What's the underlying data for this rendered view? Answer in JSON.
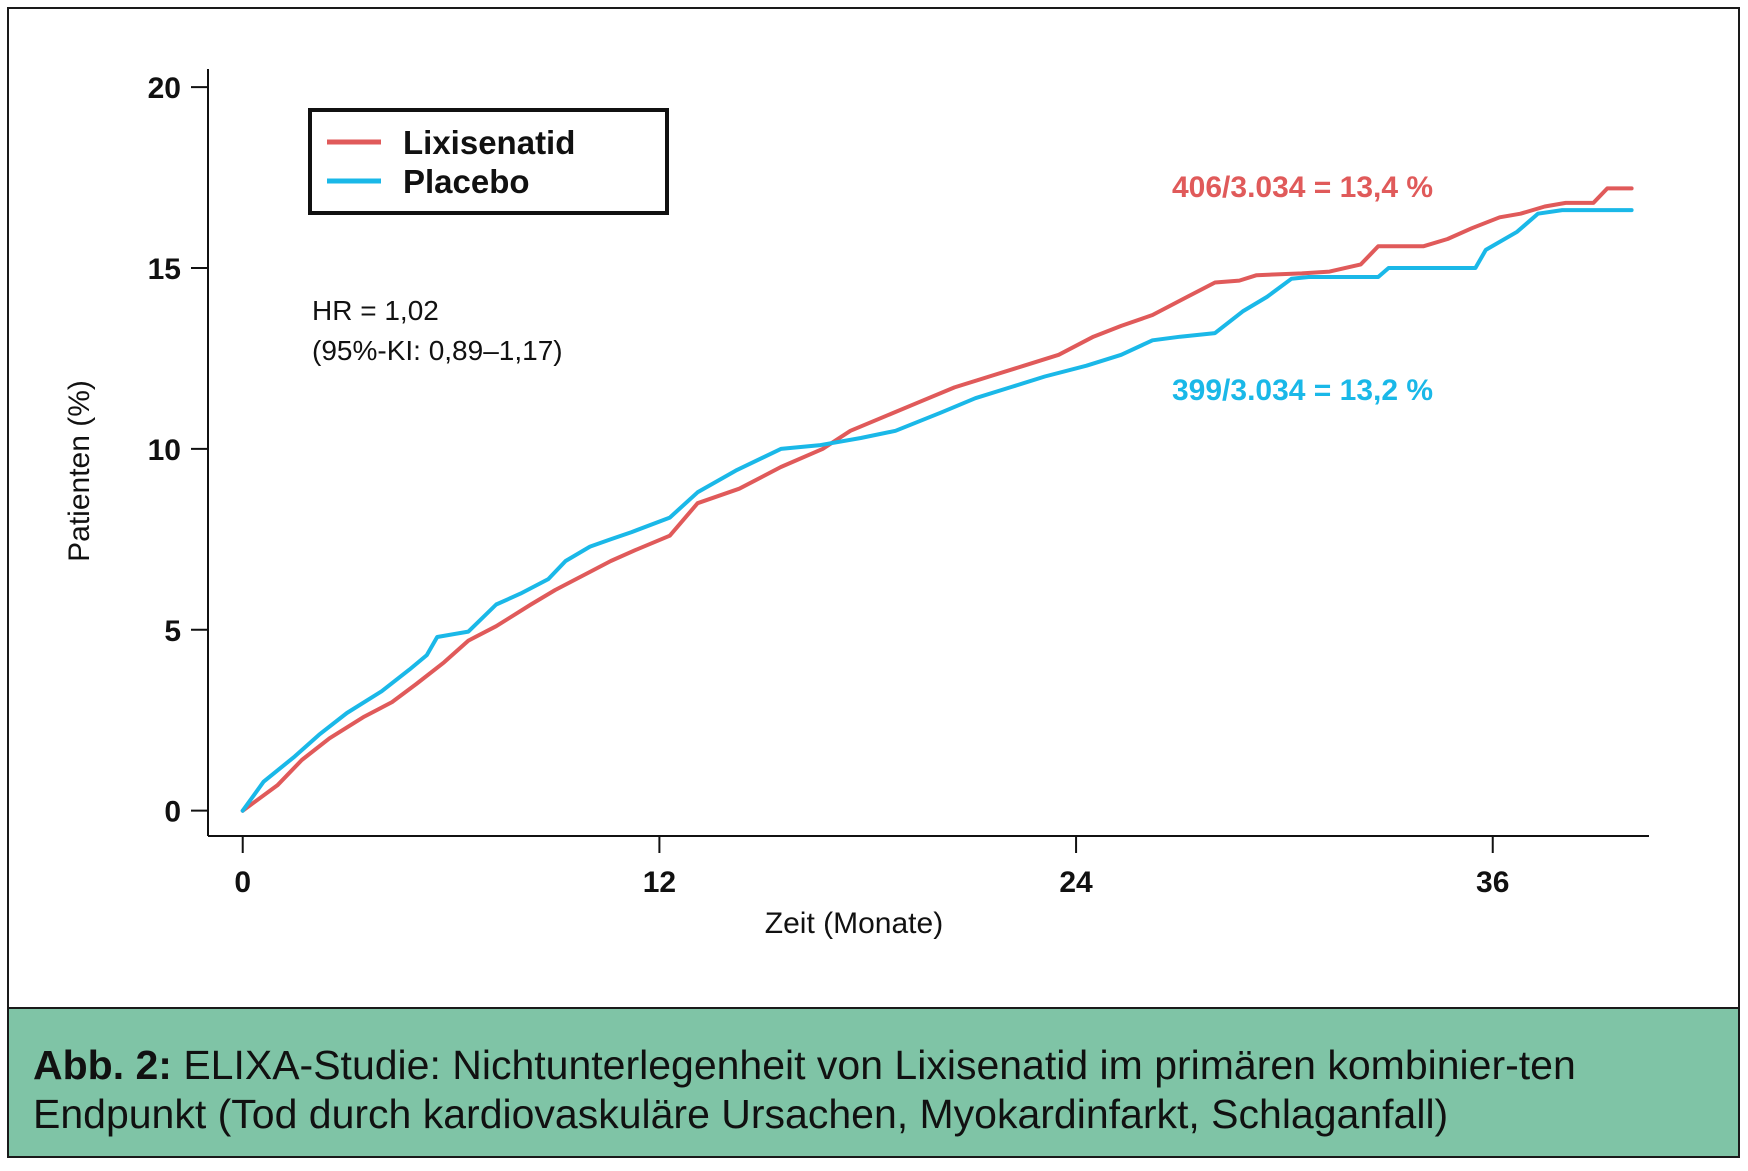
{
  "colors": {
    "lixisenatid": "#e05a5a",
    "placebo": "#1ab8e8",
    "caption_bg": "#7fc4a6",
    "axis": "#111111"
  },
  "chart_data": {
    "type": "line",
    "xlabel": "Zeit (Monate)",
    "ylabel": "Patienten (%)",
    "xlim": [
      -1,
      40.5
    ],
    "ylim": [
      -0.7,
      20.5
    ],
    "xticks": [
      0,
      12,
      24,
      36
    ],
    "yticks": [
      0,
      5,
      10,
      15,
      20
    ],
    "grid": false,
    "legend": {
      "position": "top-left",
      "entries": [
        "Lixisenatid",
        "Placebo"
      ]
    },
    "series": [
      {
        "name": "Lixisenatid",
        "color": "#e05a5a",
        "x": [
          0,
          1,
          1.7,
          2.5,
          3.5,
          4.3,
          5,
          5.8,
          6.5,
          7.3,
          8.3,
          9,
          10,
          10.6,
          11.3,
          12.3,
          13.1,
          14.3,
          15.5,
          16.7,
          17.5,
          18.5,
          19.5,
          20.5,
          21.5,
          22.5,
          23.5,
          24.5,
          25.3,
          26.2,
          27.2,
          28,
          28.7,
          29.2,
          30.5,
          31.3,
          32.2,
          32.7,
          34,
          34.7,
          35.4,
          36.2,
          36.8,
          37.5,
          38.1,
          38.9,
          39.3,
          40
        ],
        "y": [
          0,
          0.7,
          1.4,
          2,
          2.6,
          3,
          3.5,
          4.1,
          4.7,
          5.1,
          5.7,
          6.1,
          6.6,
          6.9,
          7.2,
          7.6,
          8.5,
          8.9,
          9.5,
          10,
          10.5,
          10.9,
          11.3,
          11.7,
          12,
          12.3,
          12.6,
          13.1,
          13.4,
          13.7,
          14.2,
          14.6,
          14.65,
          14.8,
          14.85,
          14.9,
          15.1,
          15.6,
          15.6,
          15.8,
          16.1,
          16.4,
          16.5,
          16.7,
          16.8,
          16.8,
          17.2,
          17.2
        ]
      },
      {
        "name": "Placebo",
        "color": "#1ab8e8",
        "x": [
          0,
          0.6,
          1.5,
          2.2,
          3,
          4,
          4.8,
          5.3,
          5.6,
          6.5,
          7.3,
          8,
          8.8,
          9.3,
          10,
          10.6,
          11.2,
          12.3,
          13.1,
          14.2,
          15.5,
          16.6,
          17.8,
          18.8,
          20.1,
          21.1,
          22.1,
          23.1,
          24.3,
          25.3,
          26.2,
          27,
          28,
          28.8,
          29.5,
          30.2,
          30.7,
          32.7,
          33,
          35.5,
          35.8,
          36.7,
          37.3,
          38,
          38.8,
          40
        ],
        "y": [
          0,
          0.8,
          1.5,
          2.1,
          2.7,
          3.3,
          3.9,
          4.3,
          4.8,
          4.95,
          5.7,
          6,
          6.4,
          6.9,
          7.3,
          7.5,
          7.7,
          8.1,
          8.8,
          9.4,
          10,
          10.1,
          10.3,
          10.5,
          11,
          11.4,
          11.7,
          12,
          12.3,
          12.6,
          13,
          13.1,
          13.2,
          13.8,
          14.2,
          14.7,
          14.75,
          14.75,
          15,
          15,
          15.5,
          16,
          16.5,
          16.6,
          16.6,
          16.6
        ]
      }
    ],
    "annotations": [
      {
        "text": "406/3.034 = 13,4 %",
        "color": "#e05a5a"
      },
      {
        "text": "399/3.034 = 13,2 %",
        "color": "#1ab8e8"
      }
    ],
    "stat_lines": [
      "HR = 1,02",
      "(95%-KI: 0,89–1,17)"
    ]
  },
  "caption": {
    "label": "Abb. 2:",
    "text": " ELIXA-Studie: Nichtunterlegenheit von Lixisenatid im primären kombinier-ten Endpunkt (Tod durch kardiovaskuläre Ursachen, Myokardinfarkt, Schlaganfall)"
  }
}
